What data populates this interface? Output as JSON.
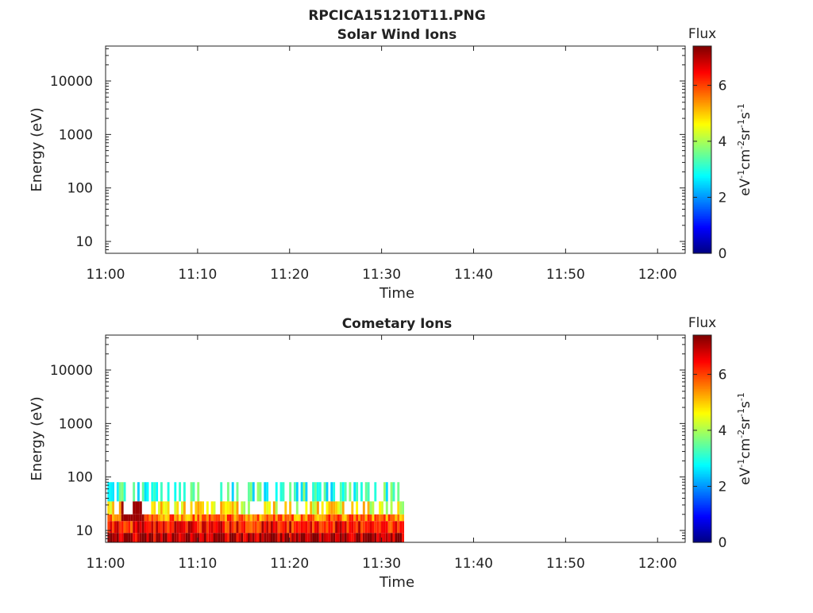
{
  "figure_title": "RPCICA151210T11.PNG",
  "colorscale": {
    "stops": [
      "#00007f",
      "#0000ff",
      "#007fff",
      "#00ffff",
      "#7fff7f",
      "#ffff00",
      "#ff7f00",
      "#ff0000",
      "#7f0000"
    ],
    "max": 7.4
  },
  "chart_data": [
    {
      "type": "heatmap",
      "title": "Solar Wind Ions",
      "xlabel": "Time",
      "ylabel": "Energy (eV)",
      "x_ticks": [
        "11:00",
        "11:10",
        "11:20",
        "11:30",
        "11:40",
        "11:50",
        "12:00"
      ],
      "x_range_minutes": [
        0,
        63
      ],
      "y_scale": "log",
      "y_ticks": [
        "10",
        "100",
        "1000",
        "10000"
      ],
      "y_range": [
        6,
        45000
      ],
      "colorbar": {
        "title": "Flux",
        "label_main": "eV",
        "label_sup": "-1",
        "label_rest": [
          "cm",
          "-2",
          "sr",
          "-1",
          "s",
          "-1"
        ],
        "ticks": [
          "0",
          "2",
          "4",
          "6"
        ],
        "range": [
          0,
          7.4
        ]
      },
      "data_extent_minutes": null,
      "bands": []
    },
    {
      "type": "heatmap",
      "title": "Cometary Ions",
      "xlabel": "Time",
      "ylabel": "Energy (eV)",
      "x_ticks": [
        "11:00",
        "11:10",
        "11:20",
        "11:30",
        "11:40",
        "11:50",
        "12:00"
      ],
      "x_range_minutes": [
        0,
        63
      ],
      "y_scale": "log",
      "y_ticks": [
        "10",
        "100",
        "1000",
        "10000"
      ],
      "y_range": [
        6,
        45000
      ],
      "colorbar": {
        "title": "Flux",
        "label_main": "eV",
        "label_sup": "-1",
        "label_rest": [
          "cm",
          "-2",
          "sr",
          "-1",
          "s",
          "-1"
        ],
        "ticks": [
          "0",
          "2",
          "4",
          "6"
        ],
        "range": [
          0,
          7.4
        ]
      },
      "data_extent_minutes": [
        0.2,
        32.4
      ],
      "bands": [
        {
          "e_low": 6,
          "e_high": 9,
          "level": 7.0
        },
        {
          "e_low": 9,
          "e_high": 15,
          "level": 6.4
        },
        {
          "e_low": 15,
          "e_high": 20,
          "level": 5.6
        },
        {
          "e_low": 20,
          "e_high": 35,
          "level": 4.6
        },
        {
          "e_low": 35,
          "e_high": 80,
          "level": 3.2
        }
      ],
      "peak": {
        "start_minutes": 1.5,
        "end_minutes": 4.0,
        "energy": 30,
        "level": 7.2
      }
    }
  ]
}
